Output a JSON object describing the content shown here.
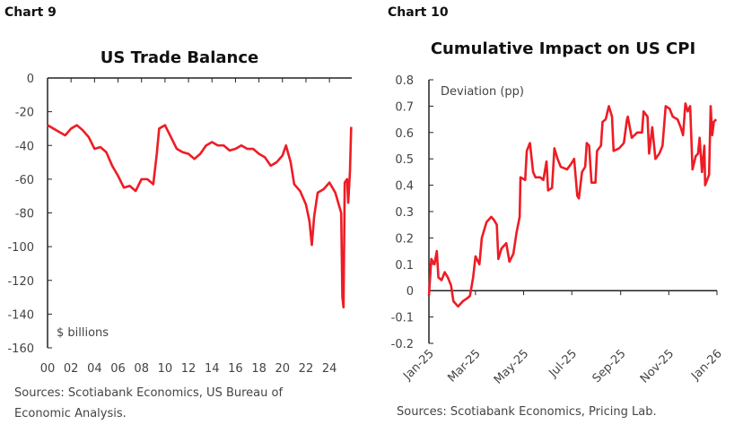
{
  "chart_data": [
    {
      "label": "Chart 9",
      "type": "line",
      "title": "US Trade Balance",
      "unit_note": "$ billions",
      "xlabel": "",
      "ylabel": "",
      "xlim": [
        2000,
        2025.9
      ],
      "ylim": [
        -160,
        0
      ],
      "x_ticks": [
        "00",
        "02",
        "04",
        "06",
        "08",
        "10",
        "12",
        "14",
        "16",
        "18",
        "20",
        "22",
        "24"
      ],
      "y_ticks": [
        0,
        -20,
        -40,
        -60,
        -80,
        -100,
        -120,
        -140,
        -160
      ],
      "color": "#ee1c25",
      "grid": false,
      "source": [
        "Sources: Scotiabank Economics, US Bureau of",
        "Economic Analysis."
      ],
      "x": [
        2000,
        2000.5,
        2001,
        2001.5,
        2002,
        2002.5,
        2003,
        2003.5,
        2004,
        2004.5,
        2005,
        2005.5,
        2006,
        2006.5,
        2007,
        2007.5,
        2008,
        2008.5,
        2009,
        2009.3,
        2009.5,
        2010,
        2010.5,
        2011,
        2011.5,
        2012,
        2012.5,
        2013,
        2013.5,
        2014,
        2014.5,
        2015,
        2015.5,
        2016,
        2016.5,
        2017,
        2017.5,
        2018,
        2018.5,
        2019,
        2019.5,
        2020,
        2020.3,
        2020.7,
        2021,
        2021.5,
        2022,
        2022.3,
        2022.5,
        2022.7,
        2023,
        2023.5,
        2024,
        2024.5,
        2025,
        2025.1,
        2025.2,
        2025.3,
        2025.5,
        2025.6,
        2025.75,
        2025.85
      ],
      "y": [
        -28,
        -30,
        -32,
        -34,
        -30,
        -28,
        -31,
        -35,
        -42,
        -41,
        -44,
        -52,
        -58,
        -65,
        -64,
        -67,
        -60,
        -60,
        -63,
        -45,
        -30,
        -28,
        -35,
        -42,
        -44,
        -45,
        -48,
        -45,
        -40,
        -38,
        -40,
        -40,
        -43,
        -42,
        -40,
        -42,
        -42,
        -45,
        -47,
        -52,
        -50,
        -46,
        -40,
        -50,
        -63,
        -67,
        -75,
        -85,
        -99,
        -82,
        -68,
        -66,
        -62,
        -68,
        -80,
        -130,
        -136,
        -62,
        -60,
        -74,
        -55,
        -29
      ]
    },
    {
      "label": "Chart 10",
      "type": "line",
      "title": "Cumulative Impact on US CPI",
      "unit_note": "Deviation (pp)",
      "xlabel": "",
      "ylabel": "",
      "xlim": [
        "2025-01-01",
        "2026-01-01"
      ],
      "ylim": [
        -0.2,
        0.8
      ],
      "x_ticks": [
        "Jan-25",
        "Mar-25",
        "May-25",
        "Jul-25",
        "Sep-25",
        "Nov-25",
        "Jan-26"
      ],
      "y_ticks": [
        0.8,
        0.7,
        0.6,
        0.5,
        0.4,
        0.3,
        0.2,
        0.1,
        0,
        -0.1,
        -0.2
      ],
      "color": "#ee1c25",
      "grid": false,
      "source": [
        "Sources: Scotiabank Economics, Pricing Lab."
      ],
      "x": [
        "2025-01-01",
        "2025-01-04",
        "2025-01-08",
        "2025-01-11",
        "2025-01-13",
        "2025-01-17",
        "2025-01-21",
        "2025-01-25",
        "2025-01-29",
        "2025-02-01",
        "2025-02-07",
        "2025-02-13",
        "2025-02-18",
        "2025-02-22",
        "2025-02-26",
        "2025-03-01",
        "2025-03-06",
        "2025-03-09",
        "2025-03-15",
        "2025-03-21",
        "2025-03-24",
        "2025-03-28",
        "2025-03-30",
        "2025-04-03",
        "2025-04-09",
        "2025-04-13",
        "2025-04-18",
        "2025-04-22",
        "2025-04-26",
        "2025-04-27",
        "2025-05-03",
        "2025-05-05",
        "2025-05-09",
        "2025-05-13",
        "2025-05-16",
        "2025-05-22",
        "2025-05-26",
        "2025-05-30",
        "2025-06-01",
        "2025-06-06",
        "2025-06-09",
        "2025-06-13",
        "2025-06-17",
        "2025-06-25",
        "2025-06-30",
        "2025-07-04",
        "2025-07-08",
        "2025-07-10",
        "2025-07-14",
        "2025-07-18",
        "2025-07-20",
        "2025-07-23",
        "2025-07-26",
        "2025-07-31",
        "2025-08-02",
        "2025-08-07",
        "2025-08-09",
        "2025-08-13",
        "2025-08-17",
        "2025-08-21",
        "2025-08-23",
        "2025-08-30",
        "2025-09-05",
        "2025-09-09",
        "2025-09-10",
        "2025-09-15",
        "2025-09-22",
        "2025-09-28",
        "2025-09-30",
        "2025-10-05",
        "2025-10-07",
        "2025-10-11",
        "2025-10-15",
        "2025-10-20",
        "2025-10-24",
        "2025-10-28",
        "2025-11-02",
        "2025-11-06",
        "2025-11-12",
        "2025-11-16",
        "2025-11-19",
        "2025-11-22",
        "2025-11-25",
        "2025-11-28",
        "2025-12-01",
        "2025-12-05",
        "2025-12-08",
        "2025-12-10",
        "2025-12-13",
        "2025-12-16",
        "2025-12-17",
        "2025-12-22",
        "2025-12-24",
        "2025-12-26",
        "2025-12-28",
        "2025-12-31"
      ],
      "y": [
        -0.02,
        0.12,
        0.1,
        0.15,
        0.05,
        0.04,
        0.07,
        0.05,
        0.02,
        -0.04,
        -0.06,
        -0.04,
        -0.03,
        -0.02,
        0.05,
        0.13,
        0.1,
        0.2,
        0.26,
        0.28,
        0.27,
        0.25,
        0.12,
        0.16,
        0.18,
        0.11,
        0.14,
        0.22,
        0.28,
        0.43,
        0.42,
        0.53,
        0.56,
        0.45,
        0.43,
        0.43,
        0.42,
        0.49,
        0.38,
        0.39,
        0.54,
        0.5,
        0.47,
        0.46,
        0.48,
        0.5,
        0.36,
        0.35,
        0.45,
        0.47,
        0.56,
        0.55,
        0.41,
        0.41,
        0.53,
        0.55,
        0.64,
        0.65,
        0.7,
        0.66,
        0.53,
        0.54,
        0.56,
        0.65,
        0.66,
        0.58,
        0.6,
        0.6,
        0.68,
        0.66,
        0.52,
        0.62,
        0.5,
        0.52,
        0.55,
        0.7,
        0.69,
        0.66,
        0.65,
        0.62,
        0.59,
        0.71,
        0.68,
        0.7,
        0.46,
        0.51,
        0.52,
        0.58,
        0.45,
        0.55,
        0.4,
        0.44,
        0.7,
        0.59,
        0.64,
        0.65
      ]
    }
  ]
}
